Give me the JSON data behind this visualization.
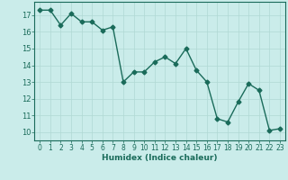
{
  "x": [
    0,
    1,
    2,
    3,
    4,
    5,
    6,
    7,
    8,
    9,
    10,
    11,
    12,
    13,
    14,
    15,
    16,
    17,
    18,
    19,
    20,
    21,
    22,
    23
  ],
  "y": [
    17.3,
    17.3,
    16.4,
    17.1,
    16.6,
    16.6,
    16.1,
    16.3,
    13.0,
    13.6,
    13.6,
    14.2,
    14.5,
    14.1,
    15.0,
    13.7,
    13.0,
    10.8,
    10.6,
    11.8,
    12.9,
    12.5,
    10.1,
    10.2
  ],
  "line_color": "#1a6b5a",
  "bg_color": "#caecea",
  "grid_color": "#b0d8d4",
  "xlabel": "Humidex (Indice chaleur)",
  "ylim": [
    9.5,
    17.8
  ],
  "xlim": [
    -0.5,
    23.5
  ],
  "yticks": [
    10,
    11,
    12,
    13,
    14,
    15,
    16,
    17
  ],
  "xticks": [
    0,
    1,
    2,
    3,
    4,
    5,
    6,
    7,
    8,
    9,
    10,
    11,
    12,
    13,
    14,
    15,
    16,
    17,
    18,
    19,
    20,
    21,
    22,
    23
  ],
  "tick_color": "#1a6b5a",
  "label_color": "#1a6b5a",
  "marker": "D",
  "marker_size": 2.5,
  "line_width": 1.0
}
